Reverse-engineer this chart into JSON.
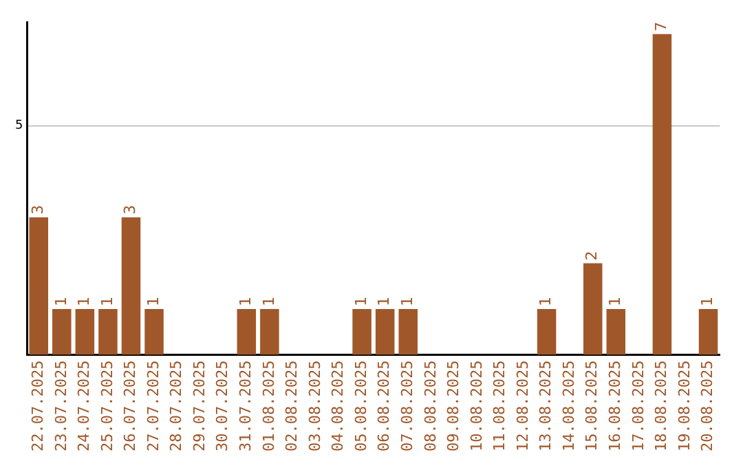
{
  "chart_data": {
    "type": "bar",
    "categories": [
      "22.07.2025",
      "23.07.2025",
      "24.07.2025",
      "25.07.2025",
      "26.07.2025",
      "27.07.2025",
      "28.07.2025",
      "29.07.2025",
      "30.07.2025",
      "31.07.2025",
      "01.08.2025",
      "02.08.2025",
      "03.08.2025",
      "04.08.2025",
      "05.08.2025",
      "06.08.2025",
      "07.08.2025",
      "08.08.2025",
      "09.08.2025",
      "10.08.2025",
      "11.08.2025",
      "12.08.2025",
      "13.08.2025",
      "14.08.2025",
      "15.08.2025",
      "16.08.2025",
      "17.08.2025",
      "18.08.2025",
      "19.08.2025",
      "20.08.2025"
    ],
    "values": [
      3,
      1,
      1,
      1,
      3,
      1,
      0,
      0,
      0,
      1,
      1,
      0,
      0,
      0,
      1,
      1,
      1,
      0,
      0,
      0,
      0,
      0,
      1,
      0,
      2,
      1,
      0,
      7,
      0,
      1
    ],
    "value_labels": [
      "3",
      "1",
      "1",
      "1",
      "3",
      "1",
      null,
      null,
      null,
      "1",
      "1",
      null,
      null,
      null,
      "1",
      "1",
      "1",
      null,
      null,
      null,
      null,
      null,
      "1",
      null,
      "2",
      "1",
      null,
      "7",
      null,
      "1"
    ],
    "color": "#a0582a",
    "ylim": [
      0,
      7.25
    ],
    "yticks": [
      5
    ],
    "grid": "y"
  }
}
